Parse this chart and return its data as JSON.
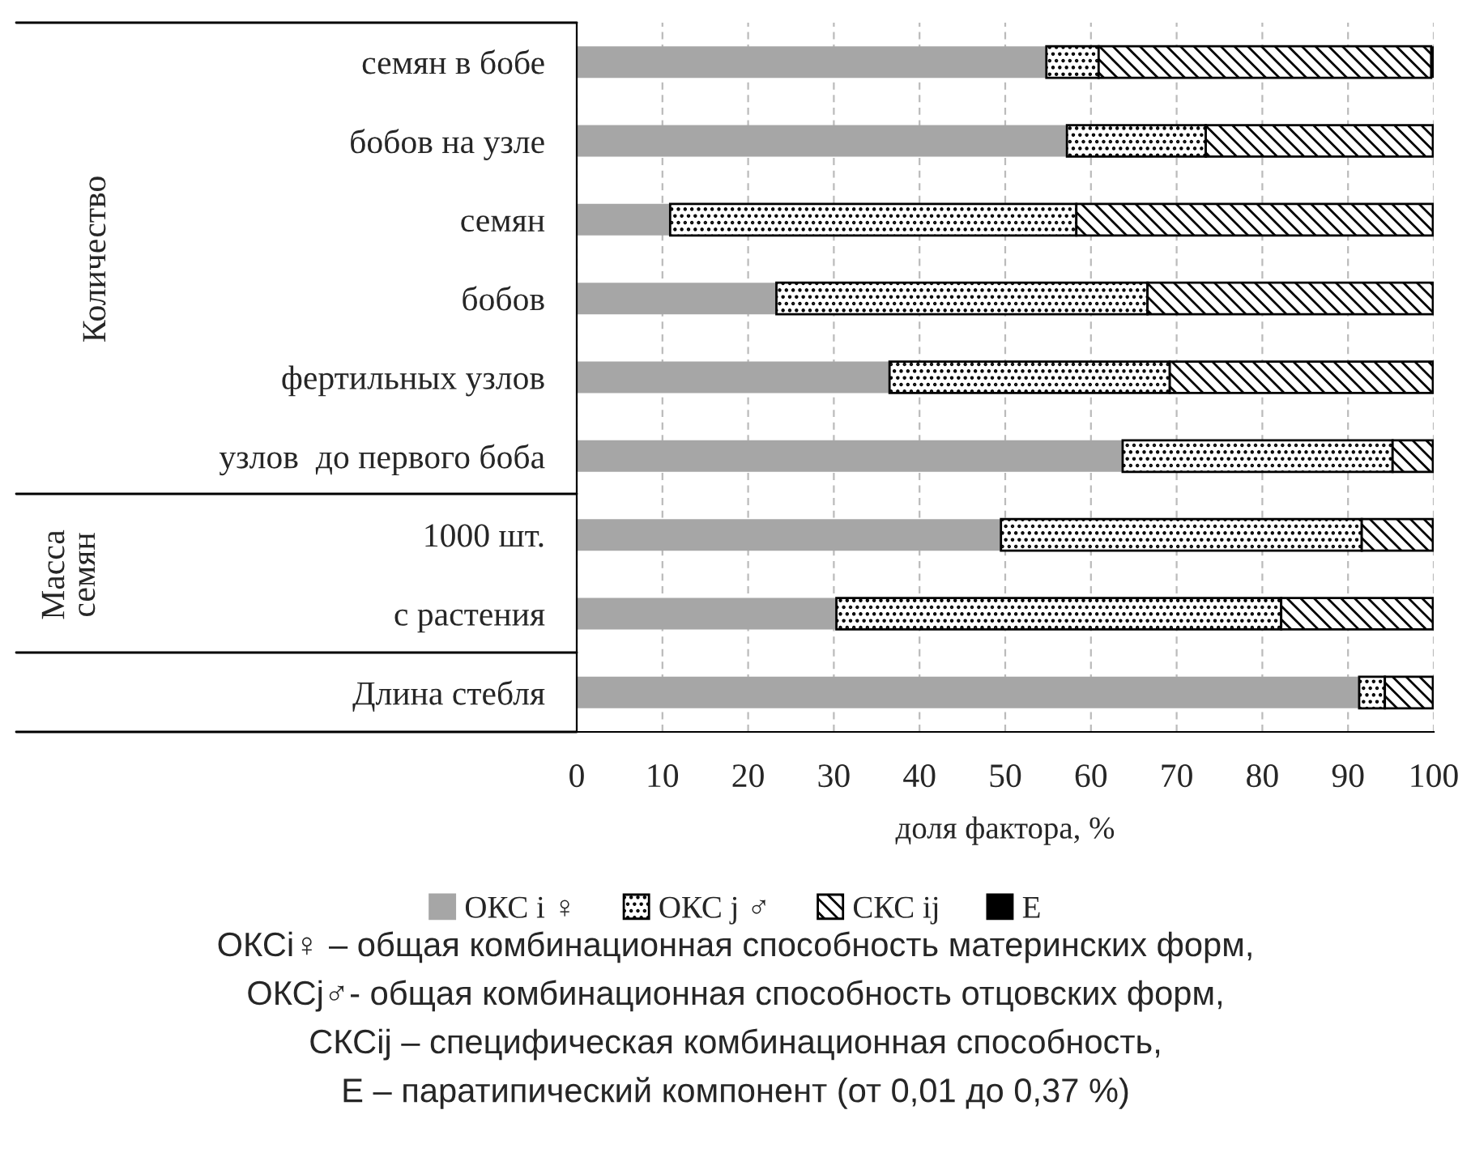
{
  "chart_data": {
    "type": "bar",
    "orientation": "horizontal",
    "stacked": true,
    "categories": [
      "семян в бобе",
      "бобов на узле",
      "семян",
      "бобов",
      "фертильных узлов",
      "узлов  до первого боба",
      "1000 шт.",
      "с растения",
      "Длина стебля"
    ],
    "series": [
      {
        "name": "ОКС i ♀",
        "color": "#a6a6a6",
        "values": [
          54.8,
          57.2,
          10.9,
          23.3,
          36.5,
          63.7,
          49.5,
          30.3,
          91.3
        ]
      },
      {
        "name": "ОКС j ♂",
        "color": "#000000",
        "values": [
          6.1,
          16.2,
          47.4,
          43.3,
          32.7,
          31.5,
          42.1,
          51.9,
          3.0
        ]
      },
      {
        "name": "СКС ij",
        "color": "#000000",
        "values": [
          38.8,
          26.5,
          41.6,
          33.3,
          30.7,
          4.7,
          8.3,
          17.7,
          5.6
        ]
      },
      {
        "name": "Е",
        "color": "#000000",
        "values": [
          0.3,
          0.1,
          0.1,
          0.1,
          0.1,
          0.1,
          0.1,
          0.1,
          0.1
        ]
      }
    ],
    "xlim": [
      0,
      100
    ],
    "xticks": [
      0,
      10,
      20,
      30,
      40,
      50,
      60,
      70,
      80,
      90,
      100
    ],
    "xlabel": "доля фактора, %",
    "grid": "x",
    "legend": "bottom",
    "annotations": [
      "Количество",
      "Масса\nсемян",
      "ОКСi♀ – общая комбинационная способность материнских форм,",
      "ОКСj♂- общая комбинационная способность отцовских форм,",
      "СКСij – специфическая комбинационная способность,",
      "Е – паратипический компонент (от 0,01 до 0,37 %)"
    ]
  }
}
